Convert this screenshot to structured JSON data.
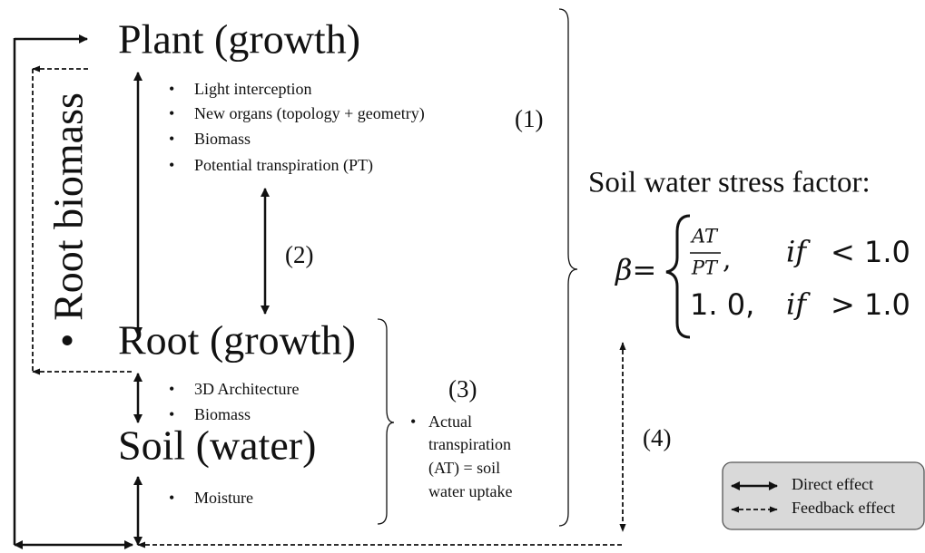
{
  "plant": {
    "title": "Plant (growth)",
    "bullets": [
      "Light interception",
      "New organs (topology + geometry)",
      "Biomass",
      "Potential transpiration (PT)"
    ]
  },
  "root": {
    "title": "Root (growth)",
    "bullets": [
      "3D Architecture",
      "Biomass"
    ]
  },
  "soil": {
    "title": "Soil (water)",
    "bullets": [
      "Moisture"
    ]
  },
  "side_label": "Root biomass",
  "steps": [
    "(1)",
    "(2)",
    "(3)",
    "(4)"
  ],
  "uptake": {
    "bullet": "•",
    "lines": [
      "Actual",
      "transpiration",
      "(AT) = soil",
      "water uptake"
    ]
  },
  "stress": {
    "title": "Soil water stress factor:",
    "beta": "β=",
    "numerator": "AT",
    "denominator": "PT",
    "comma": ",",
    "case1_cond": "if",
    "case1_rel": "< 1.0",
    "case2_value": "1. 0,",
    "case2_cond": "if",
    "case2_rel": "> 1.0"
  },
  "legend": [
    "Direct effect",
    "Feedback effect"
  ]
}
